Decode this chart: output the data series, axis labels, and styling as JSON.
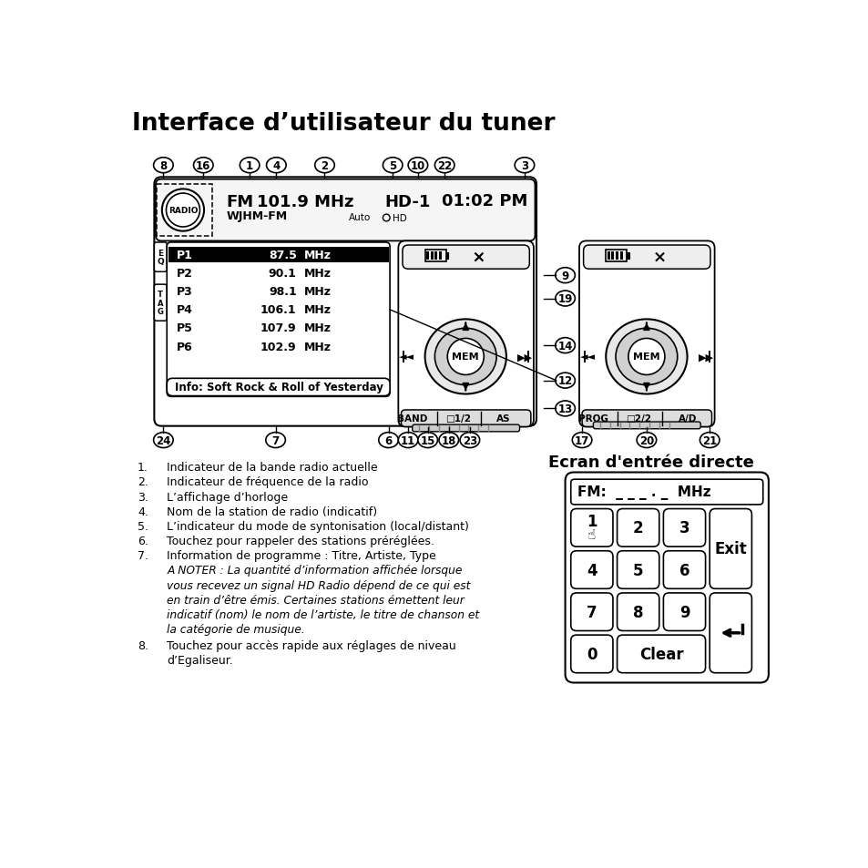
{
  "title": "Interface d’utilisateur du tuner",
  "bg_color": "#ffffff",
  "presets": [
    {
      "label": "P1",
      "freq": "87.5",
      "unit": "MHz",
      "selected": true
    },
    {
      "label": "P2",
      "freq": "90.1",
      "unit": "MHz",
      "selected": false
    },
    {
      "label": "P3",
      "freq": "98.1",
      "unit": "MHz",
      "selected": false
    },
    {
      "label": "P4",
      "freq": "106.1",
      "unit": "MHz",
      "selected": false
    },
    {
      "label": "P5",
      "freq": "107.9",
      "unit": "MHz",
      "selected": false
    },
    {
      "label": "P6",
      "freq": "102.9",
      "unit": "MHz",
      "selected": false
    }
  ],
  "info_text": "Info: Soft Rock & Roll of Yesterday",
  "keypad_title": "Ecran d'entrée directe",
  "keypad_display": "FM:  _ _ _ . _  MHz",
  "bullet_items": [
    {
      "num": "1.",
      "text": "Indicateur de la bande radio actuelle"
    },
    {
      "num": "2.",
      "text": "Indicateur de fréquence de la radio"
    },
    {
      "num": "3.",
      "text": "L’affichage d’horloge"
    },
    {
      "num": "4.",
      "text": "Nom de la station de radio (indicatif)"
    },
    {
      "num": "5.",
      "text": "L’indicateur du mode de syntonisation (local/distant)"
    },
    {
      "num": "6.",
      "text": "Touchez pour rappeler des stations préréglées."
    },
    {
      "num": "7.",
      "text": "Information de programme : Titre, Artiste, Type"
    },
    {
      "num": "8.",
      "text": "Touchez pour accès rapide aux réglages de niveau\nd’Egaliseur."
    }
  ],
  "italic_note_lines": [
    "A NOTER : La quantité d’information affichée lorsque",
    "vous recevez un signal HD Radio dépend de ce qui est",
    "en train d’être émis. Certaines stations émettent leur",
    "indicatif (nom) le nom de l’artiste, le titre de chanson et",
    "la catégorie de musique."
  ]
}
